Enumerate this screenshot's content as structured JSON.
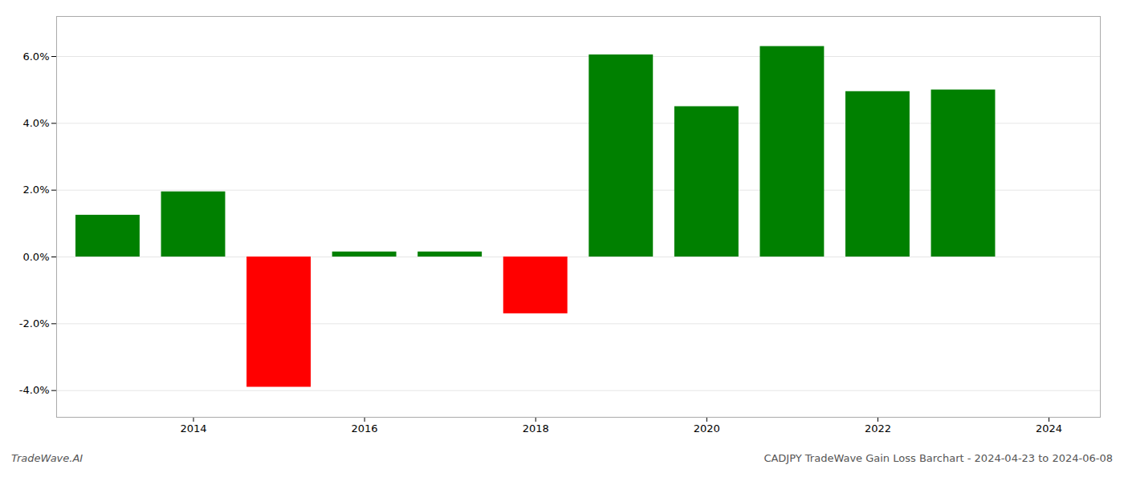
{
  "chart_data": {
    "type": "bar",
    "x": [
      2013,
      2014,
      2015,
      2016,
      2017,
      2018,
      2019,
      2020,
      2021,
      2022,
      2023
    ],
    "values": [
      1.25,
      1.95,
      -3.9,
      0.15,
      0.15,
      -1.7,
      6.05,
      4.5,
      6.3,
      4.95,
      5.0
    ],
    "colors": [
      "#008000",
      "#008000",
      "#ff0000",
      "#008000",
      "#008000",
      "#ff0000",
      "#008000",
      "#008000",
      "#008000",
      "#008000",
      "#008000"
    ],
    "xlim": [
      2012.4,
      2024.6
    ],
    "xticks": [
      2014,
      2016,
      2018,
      2020,
      2022,
      2024
    ],
    "ylim": [
      -4.8,
      7.2
    ],
    "yticks": [
      {
        "value": -4.0,
        "label": "-4.0%"
      },
      {
        "value": -2.0,
        "label": "-2.0%"
      },
      {
        "value": 0.0,
        "label": "0.0%"
      },
      {
        "value": 2.0,
        "label": "2.0%"
      },
      {
        "value": 4.0,
        "label": "4.0%"
      },
      {
        "value": 6.0,
        "label": "6.0%"
      }
    ],
    "grid": true,
    "annotations": [
      "TradeWave.AI",
      "CADJPY TradeWave Gain Loss Barchart - 2024-04-23 to 2024-06-08"
    ]
  }
}
